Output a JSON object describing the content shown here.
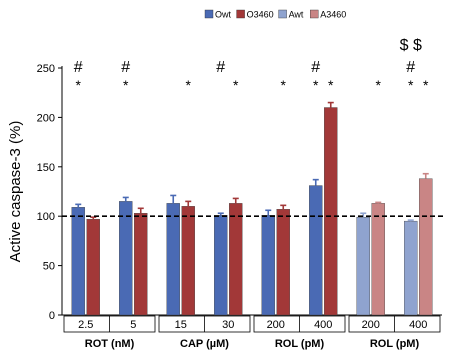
{
  "chart_data": {
    "type": "bar",
    "ylabel": "Active caspase-3 (%)",
    "ylim": [
      0,
      250
    ],
    "yticks": [
      0,
      50,
      100,
      150,
      200,
      250
    ],
    "reference_line": 100,
    "legend": [
      {
        "name": "Owt",
        "color": "#4a6ab4"
      },
      {
        "name": "O3460",
        "color": "#a23838"
      },
      {
        "name": "Awt",
        "color": "#8fa3cf"
      },
      {
        "name": "A3460",
        "color": "#c98585"
      }
    ],
    "groups": [
      {
        "label": "ROT (nM)",
        "subcategories": [
          "2.5",
          "5"
        ]
      },
      {
        "label": "CAP (µM)",
        "subcategories": [
          "15",
          "30"
        ]
      },
      {
        "label": "ROL (pM)",
        "subcategories": [
          "200",
          "400"
        ]
      },
      {
        "label": "ROL (pM)",
        "subcategories": [
          "200",
          "400"
        ]
      }
    ],
    "categories": [
      "2.5",
      "5",
      "15",
      "30",
      "200",
      "400",
      "200",
      "400"
    ],
    "pairs": [
      {
        "category": "2.5",
        "series": [
          "Owt",
          "O3460"
        ],
        "values": [
          109,
          97
        ],
        "errors": [
          3,
          2
        ]
      },
      {
        "category": "5",
        "series": [
          "Owt",
          "O3460"
        ],
        "values": [
          115,
          103
        ],
        "errors": [
          4,
          5
        ]
      },
      {
        "category": "15",
        "series": [
          "Owt",
          "O3460"
        ],
        "values": [
          113,
          110
        ],
        "errors": [
          8,
          5
        ]
      },
      {
        "category": "30",
        "series": [
          "Owt",
          "O3460"
        ],
        "values": [
          101,
          113
        ],
        "errors": [
          2,
          5
        ]
      },
      {
        "category": "200",
        "series": [
          "Owt",
          "O3460"
        ],
        "values": [
          101,
          107
        ],
        "errors": [
          5,
          4
        ]
      },
      {
        "category": "400",
        "series": [
          "Owt",
          "O3460"
        ],
        "values": [
          131,
          210
        ],
        "errors": [
          6,
          5
        ]
      },
      {
        "category": "200",
        "series": [
          "Awt",
          "A3460"
        ],
        "values": [
          99,
          113
        ],
        "errors": [
          4,
          1
        ]
      },
      {
        "category": "400",
        "series": [
          "Awt",
          "A3460"
        ],
        "values": [
          95,
          138
        ],
        "errors": [
          1,
          5
        ]
      }
    ],
    "annotations": [
      {
        "category_index": 0,
        "bar": 0,
        "text": "#",
        "row": 1
      },
      {
        "category_index": 0,
        "bar": 0,
        "text": "*",
        "row": 0
      },
      {
        "category_index": 1,
        "bar": 0,
        "text": "#",
        "row": 1
      },
      {
        "category_index": 1,
        "bar": 0,
        "text": "*",
        "row": 0
      },
      {
        "category_index": 2,
        "bar": 1,
        "text": "*",
        "row": 0
      },
      {
        "category_index": 3,
        "bar": 0,
        "text": "#",
        "row": 1
      },
      {
        "category_index": 3,
        "bar": 1,
        "text": "*",
        "row": 0
      },
      {
        "category_index": 4,
        "bar": 1,
        "text": "*",
        "row": 0
      },
      {
        "category_index": 5,
        "bar": 0,
        "text": "#",
        "row": 1
      },
      {
        "category_index": 5,
        "bar": 0,
        "text": "*",
        "row": 0
      },
      {
        "category_index": 5,
        "bar": 1,
        "text": "*",
        "row": 0
      },
      {
        "category_index": 6,
        "bar": 1,
        "text": "*",
        "row": 0
      },
      {
        "category_index": 7,
        "bar": 0,
        "text": "$ $",
        "row": 2
      },
      {
        "category_index": 7,
        "bar": 0,
        "text": "#",
        "row": 1
      },
      {
        "category_index": 7,
        "bar": 0,
        "text": "*",
        "row": 0
      },
      {
        "category_index": 7,
        "bar": 1,
        "text": "*",
        "row": 0
      }
    ]
  }
}
